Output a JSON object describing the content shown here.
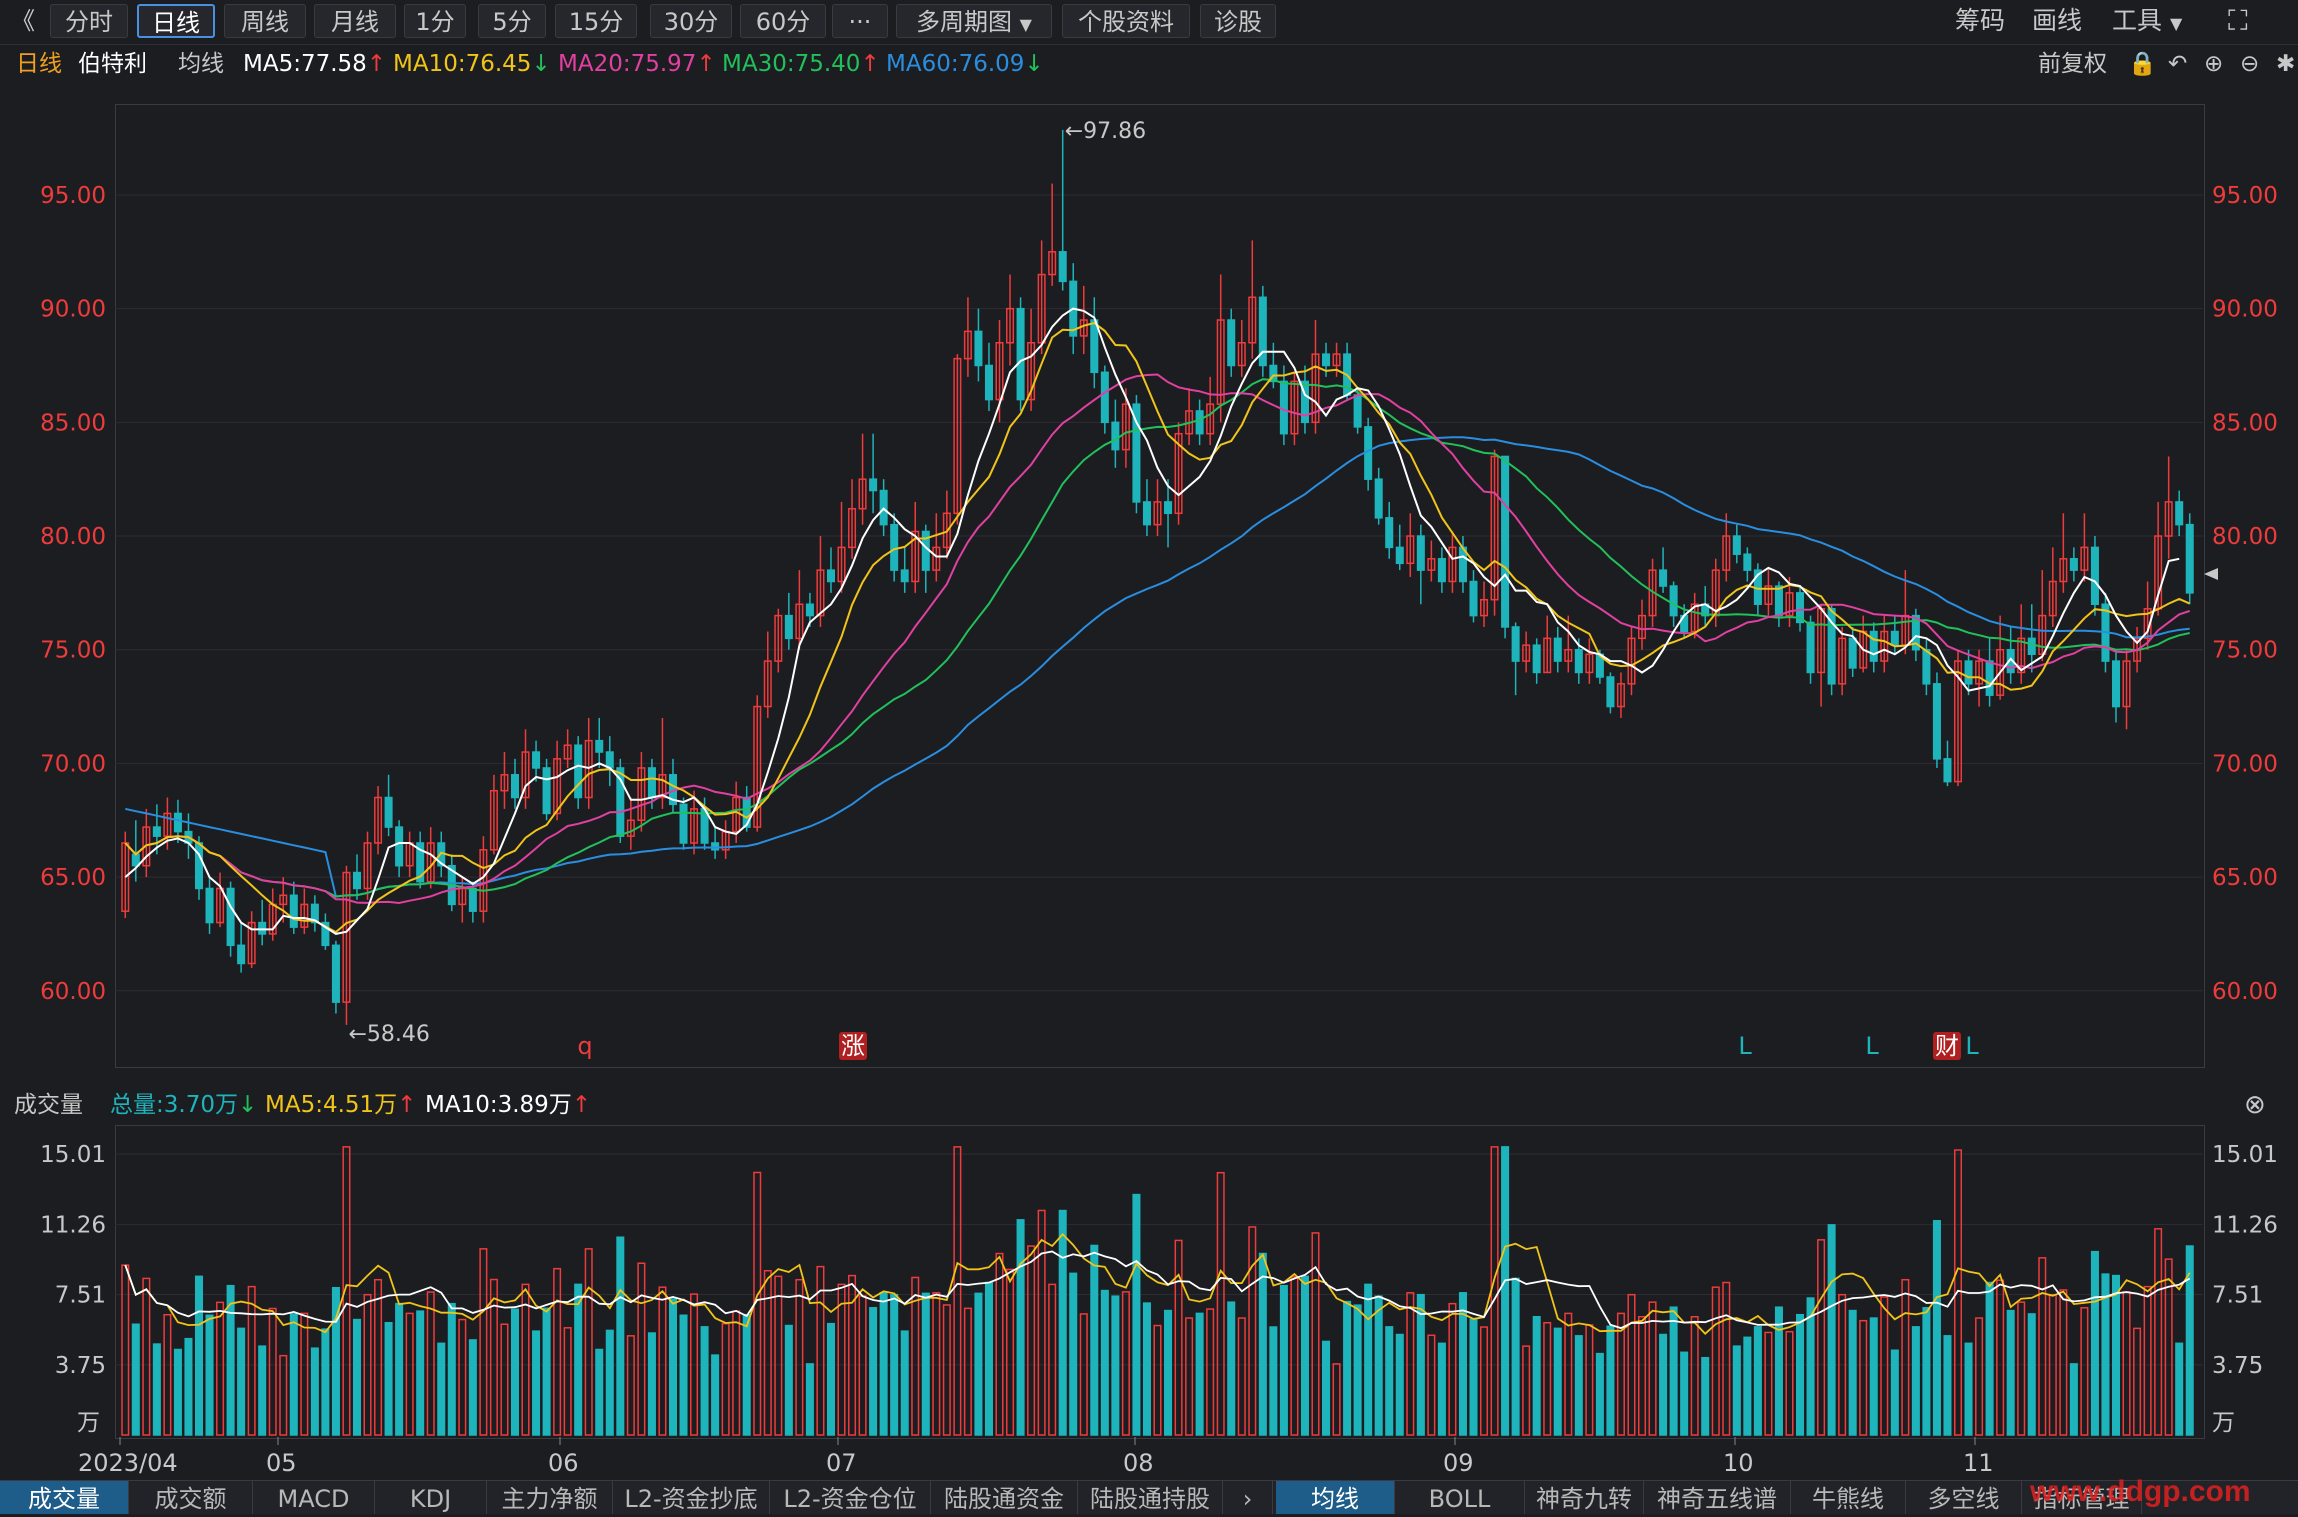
{
  "toolbar": {
    "collapse_icon": "double-chevron-left",
    "tabs": [
      "分时",
      "日线",
      "周线",
      "月线",
      "1分",
      "5分",
      "15分",
      "30分",
      "60分"
    ],
    "active_tab": "日线",
    "more": "···",
    "multi_period": "多周期图",
    "stock_info": "个股资料",
    "diagnose": "诊股",
    "right": [
      "筹码",
      "画线",
      "工具"
    ],
    "fullscreen_icon": "fullscreen-icon"
  },
  "mabar": {
    "period": "日线",
    "stock": "伯特利",
    "ma_label": "均线",
    "ma5": "MA5:77.58",
    "ma10": "MA10:76.45",
    "ma20": "MA20:75.97",
    "ma30": "MA30:75.40",
    "ma60": "MA60:76.09",
    "adjust": "前复权",
    "arrows": {
      "ma5": "↑",
      "ma10": "↓",
      "ma20": "↑",
      "ma30": "↑",
      "ma60": "↓"
    }
  },
  "colors": {
    "up": "#ee3b3b",
    "down": "#1eb4bc",
    "ma5": "#ffffff",
    "ma10": "#f0c419",
    "ma20": "#e040a0",
    "ma30": "#22c05a",
    "ma60": "#2a8ee0"
  },
  "price_axis": {
    "labels": [
      "95.00",
      "90.00",
      "85.00",
      "80.00",
      "75.00",
      "70.00",
      "65.00",
      "60.00"
    ]
  },
  "annotations": {
    "high": "←97.86",
    "low": "←58.46",
    "marks": [
      "q",
      "涨",
      "L",
      "L",
      "财",
      "L"
    ]
  },
  "volbar": {
    "label": "成交量",
    "total": "总量:3.70万",
    "ma5": "MA5:4.51万",
    "ma10": "MA10:3.89万",
    "close_icon": "close-icon"
  },
  "vol_axis": {
    "labels": [
      "15.01",
      "11.26",
      "7.51",
      "3.75",
      "万"
    ]
  },
  "x_axis": {
    "labels": [
      "2023/04",
      "05",
      "06",
      "07",
      "08",
      "09",
      "10",
      "11"
    ]
  },
  "bottom_tabs_left": [
    "成交量",
    "成交额",
    "MACD",
    "KDJ",
    "主力净额",
    "L2-资金抄底",
    "L2-资金仓位",
    "陆股通资金",
    "陆股通持股"
  ],
  "bottom_tabs_right": [
    "均线",
    "BOLL",
    "神奇九转",
    "神奇五线谱",
    "牛熊线",
    "多空线",
    "指标管理"
  ],
  "watermark": "www.ddgp.com",
  "chart_data": {
    "type": "candlestick",
    "title": "伯特利 日线",
    "ylim": [
      57,
      99
    ],
    "y_ticks": [
      60,
      65,
      70,
      75,
      80,
      85,
      90,
      95
    ],
    "x_ticks": [
      "2023/04",
      "05",
      "06",
      "07",
      "08",
      "09",
      "10",
      "11"
    ],
    "candles": [
      [
        63.5,
        66.5,
        63.2,
        67.0
      ],
      [
        66.0,
        65.5,
        64.8,
        67.5
      ],
      [
        65.5,
        67.2,
        65.0,
        68.0
      ],
      [
        67.2,
        66.8,
        66.0,
        68.2
      ],
      [
        66.8,
        67.8,
        66.2,
        68.5
      ],
      [
        67.8,
        67.0,
        66.5,
        68.4
      ],
      [
        67.0,
        66.5,
        65.8,
        67.8
      ],
      [
        66.5,
        64.5,
        64.0,
        66.8
      ],
      [
        64.5,
        63.0,
        62.5,
        65.0
      ],
      [
        63.0,
        64.5,
        62.8,
        65.2
      ],
      [
        64.5,
        62.0,
        61.5,
        64.8
      ],
      [
        62.0,
        61.2,
        60.8,
        63.0
      ],
      [
        61.2,
        63.0,
        61.0,
        63.5
      ],
      [
        63.0,
        62.5,
        62.0,
        64.0
      ],
      [
        62.5,
        63.8,
        62.2,
        64.5
      ],
      [
        63.8,
        64.2,
        63.0,
        65.0
      ],
      [
        64.2,
        62.8,
        62.5,
        64.8
      ],
      [
        62.8,
        63.8,
        62.5,
        64.5
      ],
      [
        63.8,
        63.0,
        62.6,
        64.2
      ],
      [
        63.0,
        62.0,
        61.8,
        63.4
      ],
      [
        62.0,
        59.5,
        59.0,
        62.2
      ],
      [
        59.5,
        65.2,
        58.5,
        65.5
      ],
      [
        65.2,
        64.5,
        64.0,
        66.0
      ],
      [
        64.5,
        66.5,
        64.0,
        67.0
      ],
      [
        66.5,
        68.5,
        66.0,
        69.0
      ],
      [
        68.5,
        67.2,
        66.8,
        69.5
      ],
      [
        67.2,
        65.5,
        65.0,
        67.5
      ],
      [
        65.5,
        66.5,
        65.0,
        67.0
      ],
      [
        66.5,
        64.8,
        64.5,
        67.0
      ],
      [
        64.8,
        66.5,
        64.5,
        67.2
      ],
      [
        66.5,
        65.5,
        65.0,
        67.0
      ],
      [
        65.5,
        63.8,
        63.5,
        66.0
      ],
      [
        63.8,
        64.5,
        63.0,
        65.0
      ],
      [
        64.5,
        63.5,
        63.0,
        64.8
      ],
      [
        63.5,
        66.2,
        63.0,
        66.8
      ],
      [
        66.2,
        68.8,
        66.0,
        69.5
      ],
      [
        68.8,
        69.5,
        68.0,
        70.5
      ],
      [
        69.5,
        68.5,
        68.0,
        70.2
      ],
      [
        68.5,
        70.5,
        68.0,
        71.5
      ],
      [
        70.5,
        69.8,
        69.2,
        71.0
      ],
      [
        69.8,
        67.8,
        67.5,
        70.2
      ],
      [
        67.8,
        70.2,
        67.5,
        71.0
      ],
      [
        70.2,
        70.8,
        69.8,
        71.5
      ],
      [
        70.8,
        68.5,
        68.0,
        71.2
      ],
      [
        68.5,
        71.0,
        68.0,
        72.0
      ],
      [
        71.0,
        70.5,
        69.8,
        72.0
      ],
      [
        70.5,
        69.8,
        69.0,
        71.2
      ],
      [
        69.8,
        66.8,
        66.5,
        70.2
      ],
      [
        66.8,
        67.5,
        66.2,
        68.5
      ],
      [
        67.5,
        69.8,
        67.0,
        70.5
      ],
      [
        69.8,
        68.5,
        68.0,
        70.2
      ],
      [
        68.5,
        69.5,
        68.0,
        72.0
      ],
      [
        69.5,
        68.2,
        67.8,
        70.2
      ],
      [
        68.2,
        66.5,
        66.2,
        68.5
      ],
      [
        66.5,
        68.0,
        66.0,
        68.8
      ],
      [
        68.0,
        66.5,
        66.2,
        68.5
      ],
      [
        66.5,
        66.2,
        65.8,
        67.2
      ],
      [
        66.2,
        67.0,
        65.8,
        67.5
      ],
      [
        67.0,
        68.5,
        66.5,
        69.2
      ],
      [
        68.5,
        67.2,
        67.0,
        69.0
      ],
      [
        67.2,
        72.5,
        67.0,
        73.0
      ],
      [
        72.5,
        74.5,
        72.0,
        75.8
      ],
      [
        74.5,
        76.5,
        74.0,
        76.8
      ],
      [
        76.5,
        75.5,
        75.0,
        77.5
      ],
      [
        75.5,
        77.0,
        75.0,
        78.5
      ],
      [
        77.0,
        76.5,
        76.0,
        77.5
      ],
      [
        76.5,
        78.5,
        76.0,
        80.0
      ],
      [
        78.5,
        78.0,
        77.5,
        79.5
      ],
      [
        78.0,
        79.5,
        77.5,
        81.5
      ],
      [
        79.5,
        81.2,
        79.0,
        82.5
      ],
      [
        81.2,
        82.5,
        80.5,
        84.5
      ],
      [
        82.5,
        82.0,
        81.0,
        84.5
      ],
      [
        82.0,
        80.5,
        80.0,
        82.5
      ],
      [
        80.5,
        78.5,
        78.0,
        81.0
      ],
      [
        78.5,
        78.0,
        77.5,
        79.5
      ],
      [
        78.0,
        80.2,
        77.5,
        81.5
      ],
      [
        80.2,
        78.5,
        77.5,
        80.5
      ],
      [
        78.5,
        79.5,
        78.0,
        81.0
      ],
      [
        79.5,
        81.0,
        79.0,
        82.0
      ],
      [
        81.0,
        87.8,
        80.5,
        88.0
      ],
      [
        87.8,
        89.0,
        87.0,
        90.5
      ],
      [
        89.0,
        87.5,
        86.8,
        90.0
      ],
      [
        87.5,
        86.0,
        85.5,
        88.5
      ],
      [
        86.0,
        88.5,
        85.0,
        89.5
      ],
      [
        88.5,
        90.0,
        87.5,
        91.5
      ],
      [
        90.0,
        86.0,
        85.5,
        90.5
      ],
      [
        86.0,
        88.5,
        85.5,
        90.0
      ],
      [
        88.5,
        91.5,
        88.0,
        93.0
      ],
      [
        91.5,
        92.5,
        91.0,
        95.5
      ],
      [
        92.5,
        91.2,
        90.8,
        97.86
      ],
      [
        91.2,
        88.8,
        88.0,
        92.0
      ],
      [
        88.8,
        89.5,
        88.0,
        91.0
      ],
      [
        89.5,
        87.2,
        86.5,
        90.5
      ],
      [
        87.2,
        85.0,
        84.5,
        87.5
      ],
      [
        85.0,
        83.8,
        83.0,
        86.0
      ],
      [
        83.8,
        85.8,
        83.0,
        86.5
      ],
      [
        85.8,
        81.5,
        81.0,
        86.2
      ],
      [
        81.5,
        80.5,
        80.0,
        82.5
      ],
      [
        80.5,
        81.5,
        80.0,
        82.5
      ],
      [
        81.5,
        81.0,
        79.5,
        82.5
      ],
      [
        81.0,
        84.5,
        80.5,
        85.0
      ],
      [
        84.5,
        85.5,
        84.0,
        86.5
      ],
      [
        85.5,
        84.5,
        84.0,
        86.0
      ],
      [
        84.5,
        85.8,
        84.0,
        87.0
      ],
      [
        85.8,
        89.5,
        85.0,
        91.5
      ],
      [
        89.5,
        87.5,
        87.0,
        90.0
      ],
      [
        87.5,
        88.5,
        87.0,
        89.5
      ],
      [
        88.5,
        90.5,
        87.8,
        93.0
      ],
      [
        90.5,
        87.5,
        87.0,
        91.0
      ],
      [
        87.5,
        86.8,
        86.5,
        88.5
      ],
      [
        86.8,
        84.5,
        84.0,
        87.5
      ],
      [
        84.5,
        86.8,
        84.0,
        87.2
      ],
      [
        86.8,
        85.0,
        84.5,
        87.5
      ],
      [
        85.0,
        88.0,
        84.5,
        89.5
      ],
      [
        88.0,
        87.5,
        87.0,
        88.5
      ],
      [
        87.5,
        88.0,
        87.0,
        88.5
      ],
      [
        88.0,
        86.2,
        86.0,
        88.5
      ],
      [
        86.2,
        84.8,
        84.5,
        86.5
      ],
      [
        84.8,
        82.5,
        82.0,
        85.2
      ],
      [
        82.5,
        80.8,
        80.5,
        83.0
      ],
      [
        80.8,
        79.5,
        79.0,
        81.5
      ],
      [
        79.5,
        78.8,
        78.5,
        80.5
      ],
      [
        78.8,
        80.0,
        78.2,
        81.0
      ],
      [
        80.0,
        78.5,
        77.0,
        80.5
      ],
      [
        78.5,
        79.0,
        78.0,
        79.8
      ],
      [
        79.0,
        78.0,
        77.5,
        79.5
      ],
      [
        78.0,
        79.5,
        77.5,
        80.2
      ],
      [
        79.5,
        78.0,
        77.5,
        80.0
      ],
      [
        78.0,
        76.5,
        76.2,
        78.5
      ],
      [
        76.5,
        77.2,
        76.0,
        78.0
      ],
      [
        77.2,
        83.5,
        76.5,
        83.8
      ],
      [
        83.5,
        76.0,
        75.5,
        83.5
      ],
      [
        76.0,
        74.5,
        73.0,
        76.2
      ],
      [
        74.5,
        75.2,
        74.0,
        75.8
      ],
      [
        75.2,
        74.0,
        73.5,
        75.5
      ],
      [
        74.0,
        75.5,
        74.0,
        76.5
      ],
      [
        75.5,
        74.5,
        74.0,
        76.0
      ],
      [
        74.5,
        75.0,
        74.0,
        76.5
      ],
      [
        75.0,
        74.0,
        73.5,
        75.5
      ],
      [
        74.0,
        74.8,
        73.5,
        75.5
      ],
      [
        74.8,
        73.8,
        73.5,
        75.0
      ],
      [
        73.8,
        72.5,
        72.2,
        74.0
      ],
      [
        72.5,
        73.5,
        72.0,
        74.0
      ],
      [
        73.5,
        75.5,
        73.0,
        76.0
      ],
      [
        75.5,
        76.5,
        75.0,
        77.2
      ],
      [
        76.5,
        78.5,
        76.0,
        79.0
      ],
      [
        78.5,
        77.8,
        77.5,
        79.5
      ],
      [
        77.8,
        76.5,
        76.0,
        78.0
      ],
      [
        76.5,
        75.8,
        75.5,
        77.0
      ],
      [
        75.8,
        77.0,
        75.5,
        77.5
      ],
      [
        77.0,
        76.5,
        76.0,
        77.8
      ],
      [
        76.5,
        78.5,
        76.0,
        79.0
      ],
      [
        78.5,
        80.0,
        78.0,
        81.0
      ],
      [
        80.0,
        79.2,
        78.8,
        80.5
      ],
      [
        79.2,
        78.5,
        78.0,
        79.5
      ],
      [
        78.5,
        77.0,
        76.5,
        78.8
      ],
      [
        77.0,
        77.8,
        76.5,
        78.5
      ],
      [
        77.8,
        76.5,
        76.0,
        78.0
      ],
      [
        76.5,
        77.5,
        76.0,
        78.2
      ],
      [
        77.5,
        76.2,
        75.8,
        77.8
      ],
      [
        76.2,
        74.0,
        73.5,
        76.5
      ],
      [
        74.0,
        76.8,
        72.5,
        77.0
      ],
      [
        76.8,
        73.5,
        73.0,
        77.0
      ],
      [
        73.5,
        75.5,
        73.0,
        76.0
      ],
      [
        75.5,
        74.2,
        73.8,
        76.0
      ],
      [
        74.2,
        75.8,
        74.0,
        76.5
      ],
      [
        75.8,
        74.5,
        74.0,
        76.2
      ],
      [
        74.5,
        75.8,
        74.0,
        76.5
      ],
      [
        75.8,
        75.2,
        74.8,
        76.5
      ],
      [
        75.2,
        76.5,
        74.8,
        78.5
      ],
      [
        76.5,
        75.0,
        74.5,
        76.8
      ],
      [
        75.0,
        73.5,
        73.0,
        75.5
      ],
      [
        73.5,
        70.2,
        69.8,
        74.0
      ],
      [
        70.2,
        69.2,
        69.0,
        71.0
      ],
      [
        69.2,
        74.5,
        69.0,
        75.0
      ],
      [
        74.5,
        73.5,
        73.0,
        75.0
      ],
      [
        73.5,
        74.5,
        72.5,
        75.0
      ],
      [
        74.5,
        73.0,
        72.5,
        75.5
      ],
      [
        73.0,
        75.0,
        72.8,
        76.5
      ],
      [
        75.0,
        74.0,
        73.5,
        76.0
      ],
      [
        74.0,
        75.5,
        73.5,
        77.0
      ],
      [
        75.5,
        74.8,
        74.0,
        77.0
      ],
      [
        74.8,
        76.5,
        74.5,
        78.5
      ],
      [
        76.5,
        78.0,
        76.0,
        79.5
      ],
      [
        78.0,
        79.0,
        77.5,
        81.0
      ],
      [
        79.0,
        78.5,
        78.0,
        79.5
      ],
      [
        78.5,
        79.5,
        78.0,
        81.0
      ],
      [
        79.5,
        77.0,
        76.5,
        80.0
      ],
      [
        77.0,
        74.5,
        74.0,
        77.5
      ],
      [
        74.5,
        72.5,
        71.8,
        75.0
      ],
      [
        72.5,
        74.5,
        71.5,
        75.0
      ],
      [
        74.5,
        75.5,
        74.0,
        76.0
      ],
      [
        75.5,
        76.8,
        75.0,
        78.0
      ],
      [
        76.8,
        80.0,
        76.5,
        81.5
      ],
      [
        80.0,
        81.5,
        79.0,
        83.5
      ],
      [
        81.5,
        80.5,
        80.0,
        82.0
      ],
      [
        80.5,
        77.5,
        77.0,
        81.0
      ]
    ],
    "ma5": [
      65.0,
      65.4,
      65.9,
      66.3,
      66.6,
      66.7,
      66.5,
      66.0,
      65.0,
      64.6,
      63.7,
      63.0,
      62.7,
      62.7,
      62.7,
      63.3,
      63.2,
      63.2,
      63.1,
      62.8,
      62.5,
      62.6,
      63.1,
      63.6,
      64.9,
      66.3,
      66.5,
      66.5,
      66.2,
      66.0,
      65.6,
      65.3,
      65.0,
      64.7,
      65.0,
      65.6,
      66.7,
      67.8,
      69.0,
      69.4,
      69.3,
      69.4,
      69.7,
      69.9,
      69.8,
      70.0,
      69.8,
      69.3,
      68.4,
      68.4,
      68.5,
      68.6,
      68.4,
      68.3,
      68.5,
      68.0,
      67.2,
      67.0,
      66.9,
      67.3,
      68.2,
      69.6,
      71.1,
      72.9,
      75.2,
      76.2,
      76.6,
      77.0,
      77.7,
      78.7,
      79.9,
      80.7,
      81.2,
      80.8,
      80.3,
      80.0,
      79.5,
      79.1,
      79.1,
      80.1,
      81.8,
      83.3,
      84.5,
      85.8,
      87.2,
      87.7,
      87.9,
      88.4,
      89.2,
      89.7,
      90.0,
      89.9,
      89.6,
      88.3,
      87.1,
      86.1,
      85.0,
      84.2,
      83.0,
      82.2,
      81.8,
      82.2,
      82.6,
      83.3,
      84.4,
      85.7,
      86.7,
      87.6,
      88.1,
      88.1,
      88.1,
      87.4,
      86.2,
      85.9,
      85.3,
      86.0,
      86.2,
      86.5,
      86.4,
      85.7,
      84.7,
      83.6,
      82.2,
      80.9,
      80.4,
      79.7,
      79.0,
      79.1,
      78.8,
      78.2,
      77.8,
      78.3,
      77.6,
      77.6,
      77.1,
      77.0,
      76.2,
      75.8,
      75.2,
      74.9,
      74.8,
      74.5,
      74.5,
      74.3,
      74.0,
      74.3,
      75.0,
      75.8,
      76.5,
      76.9,
      77.0,
      76.7,
      76.9,
      77.2,
      77.7,
      78.3,
      78.6,
      78.4,
      77.9,
      77.8,
      77.3,
      76.8,
      76.2,
      75.7,
      75.6,
      75.0,
      74.8,
      75.0,
      74.8,
      75.1,
      75.6,
      75.5,
      75.2,
      74.3,
      73.8,
      73.2,
      73.3,
      73.4,
      74.0,
      74.6,
      74.1,
      74.4,
      74.7,
      75.6,
      76.6,
      77.5,
      78.2,
      78.0,
      77.4,
      76.5,
      75.8,
      75.3,
      75.8,
      77.4,
      78.9,
      79.0
    ]
  }
}
